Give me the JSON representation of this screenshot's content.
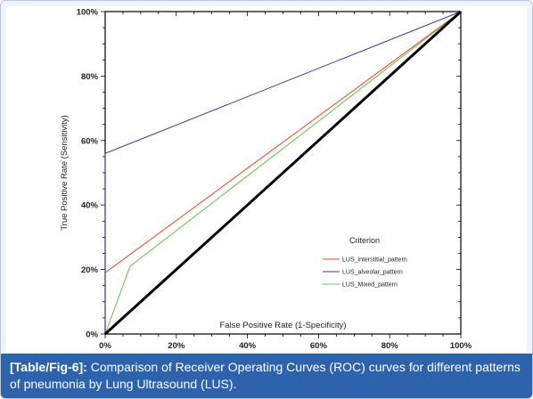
{
  "chart_data": {
    "type": "line",
    "xlabel": "False Positive Rate (1-Specificity)",
    "ylabel": "True Positive Rate (Sensitivity)",
    "xlim": [
      0,
      100
    ],
    "ylim": [
      0,
      100
    ],
    "x_ticks": [
      "0%",
      "20%",
      "40%",
      "60%",
      "80%",
      "100%"
    ],
    "y_ticks": [
      "0%",
      "20%",
      "40%",
      "60%",
      "80%",
      "100%"
    ],
    "legend_title": "Criterion",
    "legend_position": "center-right",
    "series": [
      {
        "name": "LUS_interstitial_pattern",
        "color": "#e8442a",
        "points": [
          [
            0,
            0
          ],
          [
            0,
            19
          ],
          [
            100,
            100
          ]
        ]
      },
      {
        "name": "LUS_alveolar_pattern",
        "color": "#3a3aa6",
        "points": [
          [
            0,
            0
          ],
          [
            0,
            56
          ],
          [
            100,
            100
          ]
        ]
      },
      {
        "name": "LUS_Mixed_pattern",
        "color": "#6cc04a",
        "points": [
          [
            0,
            0
          ],
          [
            7,
            21
          ],
          [
            100,
            100
          ]
        ]
      }
    ],
    "reference_line": {
      "color": "#000000",
      "points": [
        [
          0,
          0
        ],
        [
          100,
          100
        ]
      ]
    }
  },
  "caption": {
    "label": "[Table/Fig-6]:",
    "text": " Comparison of Receiver Operating Curves (ROC) curves for different patterns of pneumonia by Lung Ultrasound (LUS)."
  }
}
